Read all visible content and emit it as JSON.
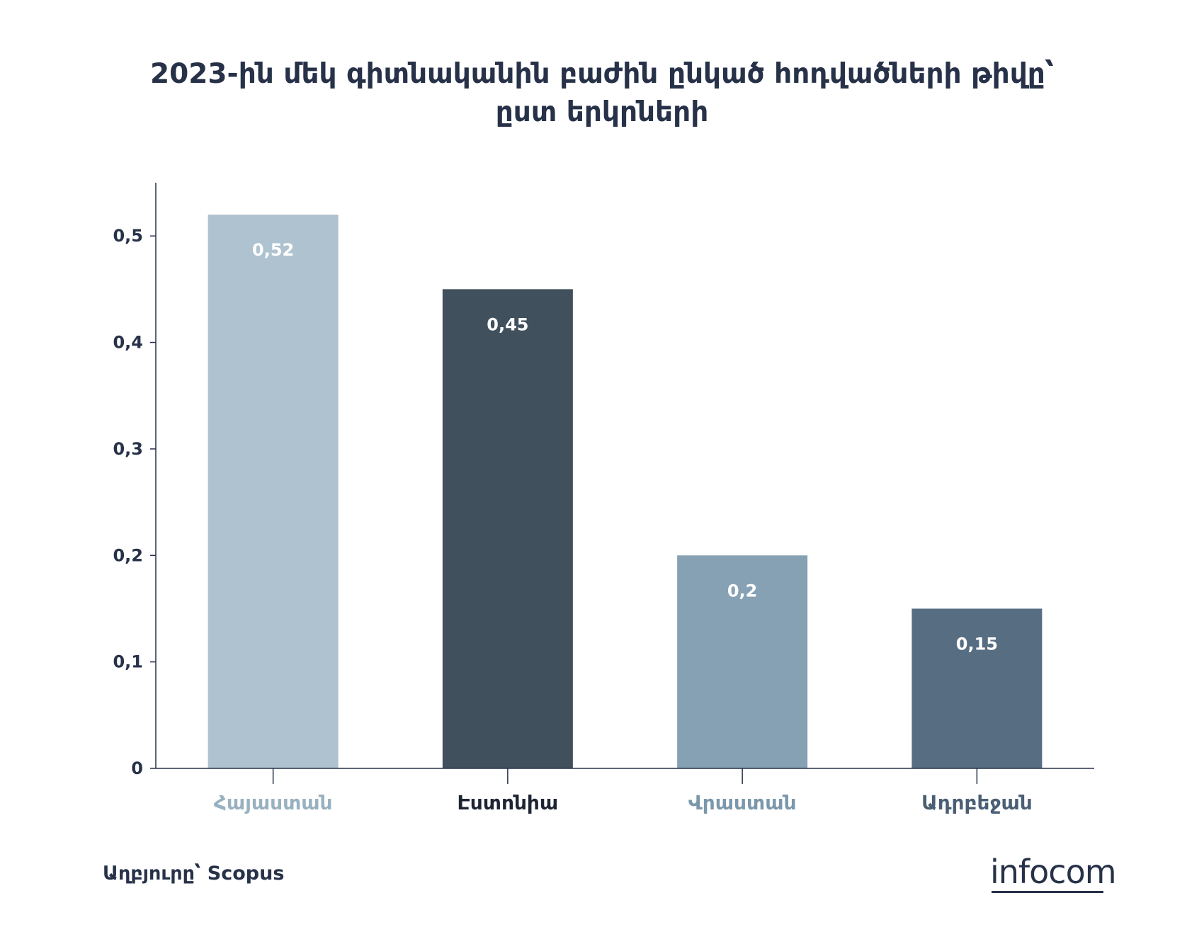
{
  "chart_data": {
    "type": "bar",
    "title": "2023-ին մեկ գիտնականին բաժին ընկած հոդվածների թիվը՝ ըստ երկրների",
    "title_lines": [
      "2023-ին մեկ գիտնականին բաժին ընկած հոդվածների թիվը՝",
      "ըստ երկրների"
    ],
    "categories": [
      "Հայաստան",
      "Էստոնիա",
      "Վրաստան",
      "Ադրբեջան"
    ],
    "values": [
      0.52,
      0.45,
      0.2,
      0.15
    ],
    "value_labels": [
      "0,52",
      "0,45",
      "0,2",
      "0,15"
    ],
    "bar_colors": [
      "#aec2cf",
      "#40505d",
      "#87a1b4",
      "#576d82"
    ],
    "category_label_colors": [
      "#98b1c1",
      "#1d2433",
      "#7b97ab",
      "#4a5f74"
    ],
    "yticks": [
      0,
      0.1,
      0.2,
      0.3,
      0.4,
      0.5
    ],
    "ytick_labels": [
      "0",
      "0,1",
      "0,2",
      "0,3",
      "0,4",
      "0,5"
    ],
    "ylim": [
      0,
      0.55
    ],
    "xlabel": "",
    "ylabel": "",
    "grid": false,
    "legend": false
  },
  "footer": {
    "source": "Աղբյուրը՝ Scopus",
    "logo": "infocom"
  },
  "colors": {
    "text": "#273249",
    "axis": "#273249"
  }
}
